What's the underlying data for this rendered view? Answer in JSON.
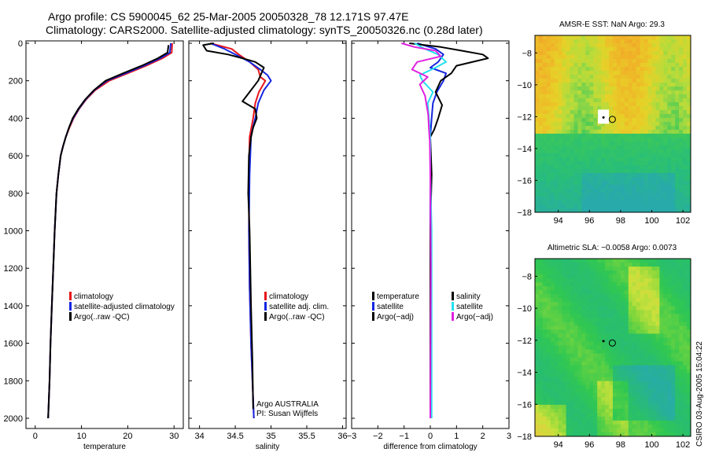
{
  "title": {
    "line1": "Argo profile: CS 5900045_62 25-Mar-2005 20050328_78 12.171S 97.47E",
    "line2": "Climatology: CARS2000. Satellite-adjusted climatology: synTS_20050326.nc (0.28d later)"
  },
  "stamp": "CSIRO 03-Aug-2005 15:04:22",
  "colors": {
    "red": "#e8151a",
    "blue": "#1526e0",
    "black": "#000000",
    "cyan": "#22e0f0",
    "magenta": "#e020e0"
  },
  "chart_data": [
    {
      "id": "temperature",
      "type": "line",
      "xlabel": "temperature",
      "ylabel": "",
      "xlim": [
        -2,
        32
      ],
      "ylim": [
        2050,
        0
      ],
      "xticks": [
        0,
        10,
        20,
        30
      ],
      "xtick_labels": [
        "0",
        "10",
        "20",
        "30"
      ],
      "yticks": [
        0,
        200,
        400,
        600,
        800,
        1000,
        1200,
        1400,
        1600,
        1800,
        2000
      ],
      "ytick_labels": [
        "0",
        "200",
        "400",
        "600",
        "800",
        "1000",
        "1200",
        "1400",
        "1600",
        "1800",
        "2000"
      ],
      "legend": [
        "climatology",
        "satellite-adjusted climatology",
        "Argo(..raw -QC)"
      ],
      "series": [
        {
          "name": "climatology",
          "color": "red",
          "x": [
            29.6,
            29.5,
            27.5,
            24,
            20,
            16,
            13,
            11,
            9.5,
            8.3,
            7.4,
            6.6,
            6,
            5.5,
            5,
            4.6,
            4.2,
            3.9,
            3.6,
            3.3,
            3.1,
            2.8
          ],
          "y": [
            0,
            50,
            80,
            120,
            160,
            200,
            250,
            300,
            350,
            400,
            450,
            500,
            550,
            600,
            700,
            800,
            1000,
            1200,
            1400,
            1600,
            1800,
            2000
          ]
        },
        {
          "name": "satellite-adjusted climatology",
          "color": "blue",
          "x": [
            29.3,
            29.1,
            27,
            23.5,
            19.5,
            15.5,
            12.8,
            10.9,
            9.4,
            8.2,
            7.3,
            6.6,
            6,
            5.5,
            5,
            4.6,
            4.2,
            3.9,
            3.6,
            3.3,
            3.1,
            2.8
          ],
          "y": [
            0,
            50,
            80,
            120,
            160,
            200,
            250,
            300,
            350,
            400,
            450,
            500,
            550,
            600,
            700,
            800,
            1000,
            1200,
            1400,
            1600,
            1800,
            2000
          ]
        },
        {
          "name": "Argo(..raw -QC)",
          "color": "black",
          "x": [
            28.8,
            28.6,
            26.5,
            23,
            19,
            15.2,
            12.7,
            10.8,
            9.3,
            8.1,
            7.3,
            6.6,
            6,
            5.5,
            5,
            4.6,
            4.2,
            3.9,
            3.6,
            3.3,
            3.1,
            2.8
          ],
          "y": [
            10,
            50,
            80,
            120,
            160,
            200,
            250,
            300,
            350,
            400,
            450,
            500,
            550,
            600,
            700,
            800,
            1000,
            1200,
            1400,
            1600,
            1800,
            2000
          ]
        }
      ]
    },
    {
      "id": "salinity",
      "type": "line",
      "xlabel": "salinity",
      "ylabel": "",
      "xlim": [
        33.85,
        36.05
      ],
      "ylim": [
        2050,
        0
      ],
      "xticks": [
        34,
        34.5,
        35,
        35.5,
        36
      ],
      "xtick_labels": [
        "34",
        "34.5",
        "35",
        "35.5",
        "36"
      ],
      "legend": [
        "climatology",
        "satellite adj. clim.",
        "Argo(..raw -QC)"
      ],
      "annotations": [
        "Argo AUSTRALIA",
        "PI: Susan Wijffels"
      ],
      "series": [
        {
          "name": "climatology",
          "color": "red",
          "x": [
            34.15,
            34.45,
            34.55,
            34.7,
            34.82,
            34.85,
            34.92,
            34.83,
            34.78,
            34.75,
            34.72,
            34.7,
            34.69,
            34.69,
            34.7,
            34.72,
            34.74,
            34.76
          ],
          "y": [
            0,
            30,
            60,
            100,
            140,
            180,
            200,
            260,
            320,
            400,
            460,
            500,
            700,
            1000,
            1300,
            1600,
            1800,
            2000
          ]
        },
        {
          "name": "satellite adj. clim.",
          "color": "blue",
          "x": [
            34.15,
            34.35,
            34.5,
            34.7,
            34.85,
            34.95,
            35.0,
            34.9,
            34.82,
            34.78,
            34.74,
            34.72,
            34.7,
            34.69,
            34.7,
            34.72,
            34.74,
            34.76
          ],
          "y": [
            0,
            30,
            60,
            100,
            140,
            170,
            200,
            250,
            320,
            400,
            460,
            500,
            700,
            1000,
            1300,
            1600,
            1800,
            2000
          ]
        },
        {
          "name": "Argo(..raw -QC)",
          "color": "black",
          "x": [
            34.2,
            34.05,
            34.1,
            34.4,
            34.6,
            34.78,
            34.9,
            34.82,
            34.7,
            34.6,
            34.78,
            34.8,
            34.75,
            34.72,
            34.69,
            34.68,
            34.7,
            34.72,
            34.74,
            34.75
          ],
          "y": [
            0,
            10,
            40,
            60,
            80,
            100,
            130,
            200,
            260,
            310,
            350,
            400,
            450,
            500,
            600,
            800,
            1000,
            1400,
            1700,
            1950
          ]
        }
      ]
    },
    {
      "id": "difference",
      "type": "line",
      "xlabel": "difference from climatology",
      "ylabel": "",
      "xlim": [
        -3,
        3
      ],
      "ylim": [
        2050,
        0
      ],
      "xticks": [
        -3,
        -2,
        -1,
        0,
        1,
        2,
        3
      ],
      "xtick_labels": [
        "−3",
        "−2",
        "−1",
        "0",
        "1",
        "2",
        "3"
      ],
      "legend_left": [
        "temperature",
        "satellite",
        "Argo(−adj)"
      ],
      "legend_right": [
        "salinity",
        "satellite",
        "Argo(−adj)"
      ],
      "series": [
        {
          "name": "temperature satellite",
          "color": "blue",
          "x": [
            -0.5,
            0.2,
            0.5,
            0.3,
            0.0,
            0.6,
            0.5,
            0.25,
            0.1,
            0.05,
            0.0,
            0.0,
            0.0,
            0.0,
            0.0
          ],
          "y": [
            0,
            30,
            60,
            100,
            130,
            160,
            200,
            260,
            320,
            400,
            500,
            700,
            1000,
            1500,
            2000
          ]
        },
        {
          "name": "temperature Argo(-adj)",
          "color": "black",
          "x": [
            -0.8,
            0.4,
            1.2,
            2.0,
            2.2,
            1.0,
            0.8,
            0.4,
            0.2,
            0.45,
            0.3,
            0.15,
            0.0,
            0.05,
            0.0,
            0.0
          ],
          "y": [
            0,
            20,
            40,
            60,
            80,
            120,
            160,
            200,
            260,
            330,
            400,
            460,
            500,
            700,
            1000,
            2000
          ]
        },
        {
          "name": "salinity satellite",
          "color": "cyan",
          "x": [
            -0.6,
            -0.2,
            0.3,
            0.6,
            0.2,
            -0.4,
            -0.3,
            0.1,
            -0.1,
            -0.05,
            0.0,
            0.0,
            0.05,
            0.05,
            0.05
          ],
          "y": [
            0,
            30,
            60,
            100,
            130,
            170,
            200,
            260,
            320,
            400,
            500,
            700,
            1000,
            1500,
            2000
          ]
        },
        {
          "name": "salinity Argo(-adj)",
          "color": "magenta",
          "x": [
            -1.1,
            -0.6,
            0.2,
            0.4,
            -0.5,
            -0.7,
            -0.1,
            -0.4,
            -0.2,
            -0.08,
            -0.05,
            -0.02,
            0.0,
            0.02,
            0.0
          ],
          "y": [
            0,
            20,
            40,
            70,
            100,
            140,
            180,
            220,
            280,
            380,
            460,
            520,
            700,
            1200,
            2000
          ]
        }
      ]
    },
    {
      "id": "sst-map",
      "type": "heatmap",
      "title": "AMSR-E SST: NaN Argo: 29.3",
      "xlim": [
        92.5,
        102.5
      ],
      "ylim": [
        -18,
        -6.9
      ],
      "xticks": [
        94,
        96,
        98,
        100,
        102
      ],
      "xtick_labels": [
        "94",
        "96",
        "98",
        "100",
        "102"
      ],
      "yticks": [
        -8,
        -10,
        -12,
        -14,
        -16,
        -18
      ],
      "ytick_labels": [
        "−8",
        "−10",
        "−12",
        "−14",
        "−16",
        "−18"
      ],
      "profile_marker": {
        "lon": 97.47,
        "lat": -12.17
      },
      "float_position": {
        "lon": 96.9,
        "lat": -12.05
      }
    },
    {
      "id": "sla-map",
      "type": "heatmap",
      "title": "Altimetric SLA: −0.0058 Argo: 0.0073",
      "xlim": [
        92.5,
        102.5
      ],
      "ylim": [
        -18,
        -6.9
      ],
      "xticks": [
        94,
        96,
        98,
        100,
        102
      ],
      "xtick_labels": [
        "94",
        "96",
        "98",
        "100",
        "102"
      ],
      "yticks": [
        -8,
        -10,
        -12,
        -14,
        -16,
        -18
      ],
      "ytick_labels": [
        "−8",
        "−10",
        "−12",
        "−14",
        "−16",
        "−18"
      ],
      "profile_marker": {
        "lon": 97.47,
        "lat": -12.17
      },
      "float_position": {
        "lon": 96.9,
        "lat": -12.05
      }
    }
  ]
}
